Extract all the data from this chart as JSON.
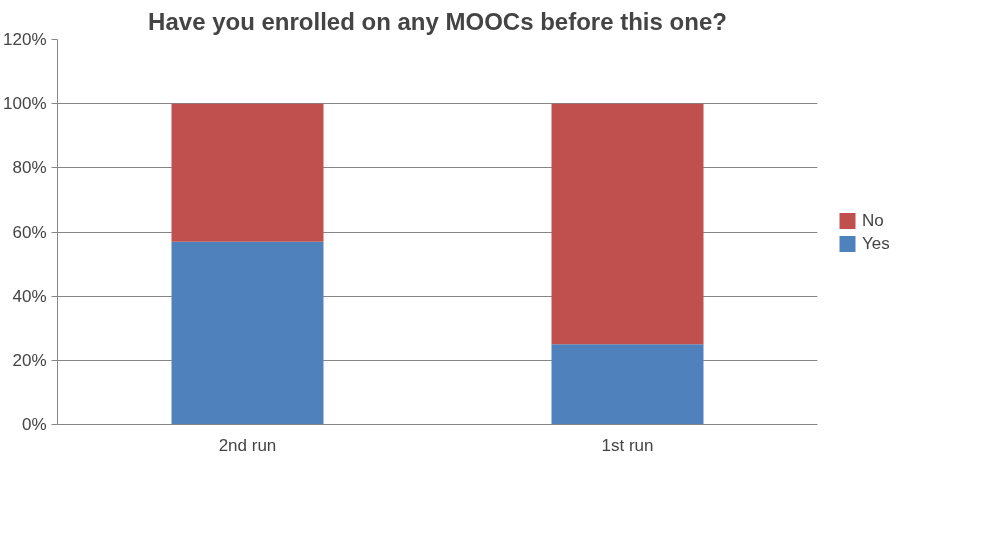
{
  "chart_data": {
    "type": "bar",
    "title": "Have you enrolled on any MOOCs before this one?",
    "categories": [
      "2nd run",
      "1st run"
    ],
    "stacked": true,
    "series": [
      {
        "name": "Yes",
        "color": "#4f81bd",
        "values": [
          57,
          25
        ]
      },
      {
        "name": "No",
        "color": "#c0504d",
        "values": [
          43,
          75
        ]
      }
    ],
    "ylim": [
      0,
      120
    ],
    "yticks": [
      {
        "value": 0,
        "label": "0%"
      },
      {
        "value": 20,
        "label": "20%"
      },
      {
        "value": 40,
        "label": "40%"
      },
      {
        "value": 60,
        "label": "60%"
      },
      {
        "value": 80,
        "label": "80%"
      },
      {
        "value": 100,
        "label": "100%"
      },
      {
        "value": 120,
        "label": "120%"
      }
    ],
    "grid": "y",
    "legend": "right"
  }
}
